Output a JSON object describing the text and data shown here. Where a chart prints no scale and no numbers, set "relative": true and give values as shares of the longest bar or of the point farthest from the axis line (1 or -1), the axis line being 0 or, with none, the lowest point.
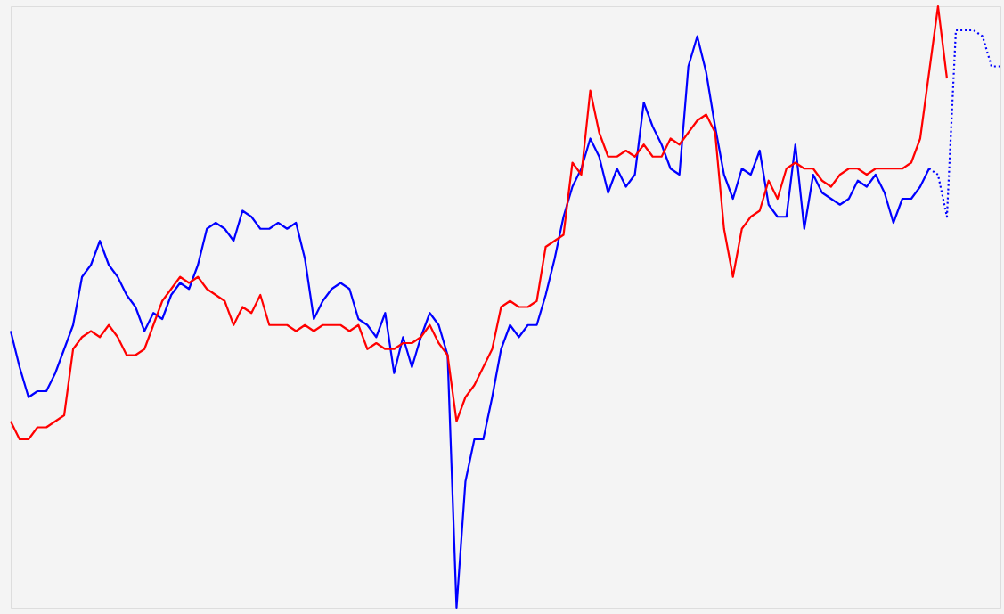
{
  "chart_data": {
    "type": "line",
    "relative": true,
    "line_style": "solid",
    "categories": [
      null,
      null,
      null,
      null,
      null,
      null,
      null,
      null,
      null,
      null,
      null,
      null,
      null,
      null,
      null,
      null,
      null,
      null,
      null,
      null,
      null,
      null,
      null,
      null,
      null,
      null,
      null,
      null,
      null,
      null,
      null,
      null,
      null,
      null,
      null,
      null,
      null,
      null,
      null,
      null,
      null,
      null,
      null,
      null,
      null,
      null,
      null,
      null,
      null,
      null,
      null,
      null,
      null,
      null,
      null,
      null,
      null,
      null,
      null,
      null,
      null,
      null,
      null,
      null,
      null,
      null,
      null,
      null,
      null,
      null,
      null,
      null,
      null,
      null,
      null,
      null,
      null,
      null,
      null,
      null,
      null,
      null,
      null,
      null,
      null,
      null,
      null,
      null,
      null,
      null,
      null,
      null,
      null,
      null,
      null,
      null,
      null,
      null,
      null,
      null,
      null,
      null,
      null,
      null,
      null,
      null,
      null,
      null,
      null,
      null,
      null,
      null
    ],
    "series": [
      {
        "color": "#0000ff",
        "values": [
          0.46,
          0.4,
          0.35,
          0.36,
          0.36,
          0.39,
          0.43,
          0.47,
          0.55,
          0.57,
          0.61,
          0.57,
          0.55,
          0.52,
          0.5,
          0.46,
          0.49,
          0.48,
          0.52,
          0.54,
          0.53,
          0.57,
          0.63,
          0.64,
          0.63,
          0.61,
          0.66,
          0.65,
          0.63,
          0.63,
          0.64,
          0.63,
          0.64,
          0.58,
          0.48,
          0.51,
          0.53,
          0.54,
          0.53,
          0.48,
          0.47,
          0.45,
          0.49,
          0.39,
          0.45,
          0.4,
          0.45,
          0.49,
          0.47,
          0.42,
          0,
          0.21,
          0.28,
          0.28,
          0.35,
          0.43,
          0.47,
          0.45,
          0.47,
          0.47,
          0.52,
          0.58,
          0.65,
          0.7,
          0.73,
          0.78,
          0.75,
          0.69,
          0.73,
          0.7,
          0.72,
          0.84,
          0.8,
          0.77,
          0.73,
          0.72,
          0.9,
          0.95,
          0.89,
          0.8,
          0.72,
          0.68,
          0.73,
          0.72,
          0.76,
          0.67,
          0.65,
          0.65,
          0.77,
          0.63,
          0.72,
          0.69,
          0.68,
          0.67,
          0.68,
          0.71,
          0.7,
          0.72,
          0.69,
          0.64,
          0.68,
          0.68,
          0.7,
          0.73,
          null,
          null,
          null,
          null,
          null,
          null,
          null,
          null
        ]
      },
      {
        "color": "#ff0000",
        "values": [
          0.31,
          0.28,
          0.28,
          0.3,
          0.3,
          0.31,
          0.32,
          0.43,
          0.45,
          0.46,
          0.45,
          0.47,
          0.45,
          0.42,
          0.42,
          0.43,
          0.47,
          0.51,
          0.53,
          0.55,
          0.54,
          0.55,
          0.53,
          0.52,
          0.51,
          0.47,
          0.5,
          0.49,
          0.52,
          0.47,
          0.47,
          0.47,
          0.46,
          0.47,
          0.46,
          0.47,
          0.47,
          0.47,
          0.46,
          0.47,
          0.43,
          0.44,
          0.43,
          0.43,
          0.44,
          0.44,
          0.45,
          0.47,
          0.44,
          0.42,
          0.31,
          0.35,
          0.37,
          0.4,
          0.43,
          0.5,
          0.51,
          0.5,
          0.5,
          0.51,
          0.6,
          0.61,
          0.62,
          0.74,
          0.72,
          0.86,
          0.79,
          0.75,
          0.75,
          0.76,
          0.75,
          0.77,
          0.75,
          0.75,
          0.78,
          0.77,
          0.79,
          0.81,
          0.82,
          0.79,
          0.63,
          0.55,
          0.63,
          0.65,
          0.66,
          0.71,
          0.68,
          0.73,
          0.74,
          0.73,
          0.73,
          0.71,
          0.7,
          0.72,
          0.73,
          0.73,
          0.72,
          0.73,
          0.73,
          0.73,
          0.73,
          0.74,
          0.78,
          0.89,
          1,
          0.88,
          null,
          null,
          null,
          null,
          null,
          null
        ]
      },
      {
        "color": "#0000ff",
        "line_style": "dotted",
        "values": [
          null,
          null,
          null,
          null,
          null,
          null,
          null,
          null,
          null,
          null,
          null,
          null,
          null,
          null,
          null,
          null,
          null,
          null,
          null,
          null,
          null,
          null,
          null,
          null,
          null,
          null,
          null,
          null,
          null,
          null,
          null,
          null,
          null,
          null,
          null,
          null,
          null,
          null,
          null,
          null,
          null,
          null,
          null,
          null,
          null,
          null,
          null,
          null,
          null,
          null,
          null,
          null,
          null,
          null,
          null,
          null,
          null,
          null,
          null,
          null,
          null,
          null,
          null,
          null,
          null,
          null,
          null,
          null,
          null,
          null,
          null,
          null,
          null,
          null,
          null,
          null,
          null,
          null,
          null,
          null,
          null,
          null,
          null,
          null,
          null,
          null,
          null,
          null,
          null,
          null,
          null,
          null,
          null,
          null,
          null,
          null,
          null,
          null,
          null,
          null,
          null,
          null,
          null,
          0.73,
          0.72,
          0.65,
          0.96,
          0.96,
          0.96,
          0.95,
          0.9,
          0.9
        ]
      }
    ]
  }
}
